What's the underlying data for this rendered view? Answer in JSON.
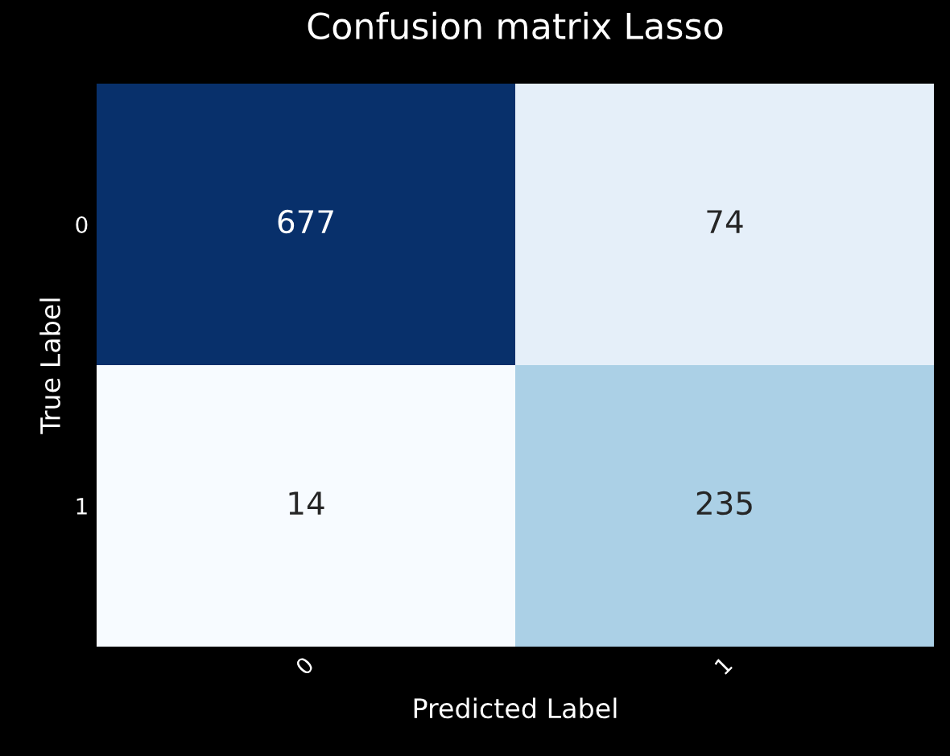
{
  "chart_data": {
    "type": "heatmap",
    "title": "Confusion matrix Lasso",
    "xlabel": "Predicted Label",
    "ylabel": "True Label",
    "categories": [
      "0",
      "1"
    ],
    "y_categories": [
      "0",
      "1"
    ],
    "cells": [
      [
        677,
        74
      ],
      [
        14,
        235
      ]
    ],
    "data_labels": true
  }
}
